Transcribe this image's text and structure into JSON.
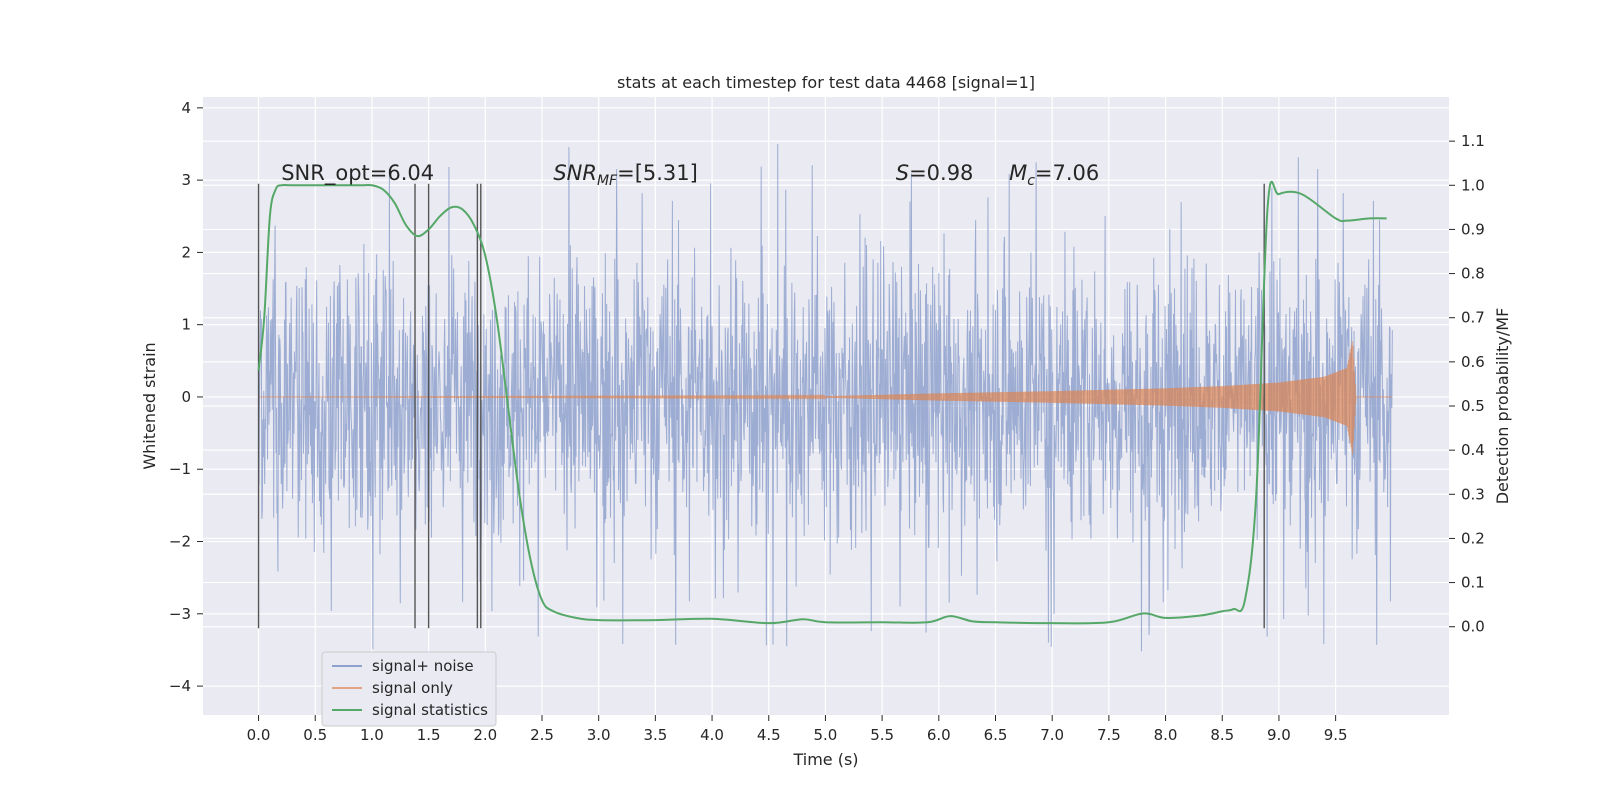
{
  "chart_data": {
    "type": "line",
    "title": "stats at each timestep for test data 4468 [signal=1]",
    "xlabel": "Time (s)",
    "ylabel": "Whitened strain",
    "ylabel_right": "Detection probability/MF",
    "xlim": [
      -0.49,
      10.5
    ],
    "ylim": [
      -4.4,
      4.15
    ],
    "ylim_right": [
      -0.2,
      1.2
    ],
    "x_ticks": [
      0.0,
      0.5,
      1.0,
      1.5,
      2.0,
      2.5,
      3.0,
      3.5,
      4.0,
      4.5,
      5.0,
      5.5,
      6.0,
      6.5,
      7.0,
      7.5,
      8.0,
      8.5,
      9.0,
      9.5
    ],
    "x_tick_labels": [
      "0.0",
      "0.5",
      "1.0",
      "1.5",
      "2.0",
      "2.5",
      "3.0",
      "3.5",
      "4.0",
      "4.5",
      "5.0",
      "5.5",
      "6.0",
      "6.5",
      "7.0",
      "7.5",
      "8.0",
      "8.5",
      "9.0",
      "9.5"
    ],
    "y_ticks": [
      -4,
      -3,
      -2,
      -1,
      0,
      1,
      2,
      3,
      4
    ],
    "y_tick_labels": [
      "−4",
      "−3",
      "−2",
      "−1",
      "0",
      "1",
      "2",
      "3",
      "4"
    ],
    "y_right_ticks": [
      0.0,
      0.1,
      0.2,
      0.3,
      0.4,
      0.5,
      0.6,
      0.7,
      0.8,
      0.9,
      1.0,
      1.1
    ],
    "y_right_tick_labels": [
      "0.0",
      "0.1",
      "0.2",
      "0.3",
      "0.4",
      "0.5",
      "0.6",
      "0.7",
      "0.8",
      "0.9",
      "1.0",
      "1.1"
    ],
    "grid": true,
    "legend_position": "bottom-left",
    "annotations": [
      {
        "text": "SNR_opt=6.04",
        "x": 0.2,
        "y": 3.0
      },
      {
        "text": "SNR",
        "sub": "MF",
        "rest": "=[5.31]",
        "x": 2.6,
        "y": 3.0
      },
      {
        "text": "S",
        "rest": "=0.98",
        "x": 5.62,
        "y": 3.0
      },
      {
        "text": "M",
        "sub": "c",
        "rest": "=7.06",
        "x": 6.62,
        "y": 3.0
      }
    ],
    "vertical_markers": [
      {
        "x": 0.0,
        "y": [
          -3.2,
          2.95
        ]
      },
      {
        "x": 1.38,
        "y": [
          -3.2,
          2.95
        ]
      },
      {
        "x": 1.5,
        "y": [
          -3.2,
          2.95
        ]
      },
      {
        "x": 1.93,
        "y": [
          -3.2,
          2.95
        ]
      },
      {
        "x": 1.96,
        "y": [
          -3.2,
          2.95
        ]
      },
      {
        "x": 8.87,
        "y": [
          -3.2,
          2.95
        ]
      }
    ],
    "series": [
      {
        "name": "signal+ noise",
        "color": "#8ea1cc",
        "x_range": [
          0.0,
          10.0
        ],
        "envelope": {
          "typical_abs": 1.6,
          "max": 3.8,
          "min": -3.6
        }
      },
      {
        "name": "signal only",
        "color": "#dd8452",
        "chirp": {
          "x": [
            0.0,
            5.0,
            6.0,
            7.0,
            8.0,
            8.5,
            9.0,
            9.4,
            9.6,
            9.65,
            9.68,
            10.0
          ],
          "amplitude": [
            0.0,
            0.01,
            0.05,
            0.08,
            0.12,
            0.15,
            0.2,
            0.28,
            0.4,
            0.8,
            0.0,
            0.0
          ]
        }
      },
      {
        "name": "signal statistics",
        "color": "#55a868",
        "axis": "right",
        "x": [
          0.0,
          0.05,
          0.1,
          0.15,
          0.2,
          0.3,
          0.5,
          0.7,
          0.9,
          1.0,
          1.1,
          1.2,
          1.3,
          1.4,
          1.5,
          1.6,
          1.7,
          1.8,
          1.9,
          2.0,
          2.1,
          2.2,
          2.3,
          2.4,
          2.5,
          2.6,
          2.8,
          3.0,
          3.5,
          4.0,
          4.5,
          4.8,
          5.0,
          5.5,
          5.9,
          6.1,
          6.3,
          6.5,
          7.0,
          7.5,
          7.8,
          8.0,
          8.3,
          8.5,
          8.6,
          8.7,
          8.8,
          8.9,
          9.0,
          9.2,
          9.5,
          9.6,
          9.8,
          9.95
        ],
        "values": [
          0.58,
          0.7,
          0.93,
          0.99,
          1.0,
          1.0,
          1.0,
          1.0,
          1.0,
          1.0,
          0.99,
          0.96,
          0.91,
          0.885,
          0.9,
          0.93,
          0.95,
          0.945,
          0.91,
          0.84,
          0.7,
          0.5,
          0.3,
          0.15,
          0.06,
          0.035,
          0.02,
          0.015,
          0.015,
          0.018,
          0.008,
          0.017,
          0.01,
          0.01,
          0.01,
          0.024,
          0.012,
          0.01,
          0.008,
          0.01,
          0.03,
          0.02,
          0.025,
          0.035,
          0.04,
          0.06,
          0.3,
          0.95,
          0.98,
          0.98,
          0.925,
          0.92,
          0.925,
          0.925
        ]
      }
    ]
  }
}
